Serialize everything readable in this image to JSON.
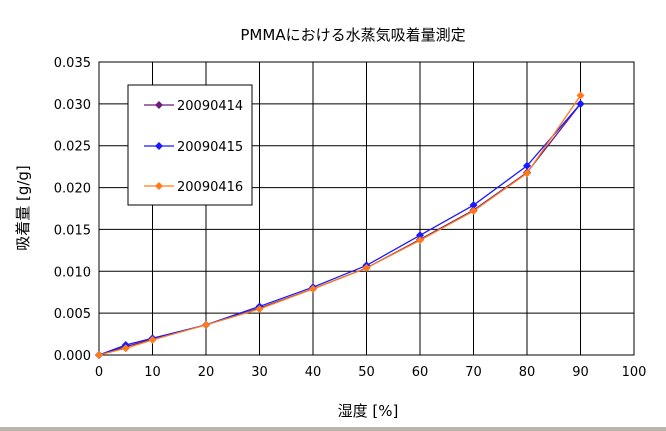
{
  "chart_data": {
    "type": "line",
    "title": "PMMAにおける水蒸気吸着量測定",
    "xlabel": "湿度 [%]",
    "ylabel": "吸着量 [g/g]",
    "xlim": [
      0,
      100
    ],
    "ylim": [
      0,
      0.035
    ],
    "xticks": [
      "0",
      "10",
      "20",
      "30",
      "40",
      "50",
      "60",
      "70",
      "80",
      "90",
      "100"
    ],
    "yticks": [
      "0.000",
      "0.005",
      "0.010",
      "0.015",
      "0.020",
      "0.025",
      "0.030",
      "0.035"
    ],
    "grid": true,
    "legend_position": "upper-left",
    "series": [
      {
        "name": "20090414",
        "color": "#6b1f7a",
        "marker": "diamond",
        "x": [
          0,
          5,
          10,
          20,
          30,
          40,
          50,
          60,
          70,
          80,
          90
        ],
        "y": [
          0.0,
          0.001,
          0.0019,
          0.0036,
          0.0056,
          0.0079,
          0.0104,
          0.0138,
          0.0173,
          0.0218,
          0.03
        ]
      },
      {
        "name": "20090415",
        "color": "#1a1aff",
        "marker": "diamond",
        "x": [
          0,
          5,
          10,
          20,
          30,
          40,
          50,
          60,
          70,
          80,
          90
        ],
        "y": [
          0.0,
          0.0012,
          0.002,
          0.0036,
          0.0058,
          0.0081,
          0.0107,
          0.0143,
          0.0179,
          0.0226,
          0.03
        ]
      },
      {
        "name": "20090416",
        "color": "#ff7a1a",
        "marker": "diamond",
        "x": [
          0,
          5,
          10,
          20,
          30,
          40,
          50,
          60,
          70,
          80,
          90
        ],
        "y": [
          0.0,
          0.0008,
          0.0018,
          0.0036,
          0.0055,
          0.0079,
          0.0104,
          0.0137,
          0.0172,
          0.0217,
          0.031
        ]
      }
    ]
  }
}
